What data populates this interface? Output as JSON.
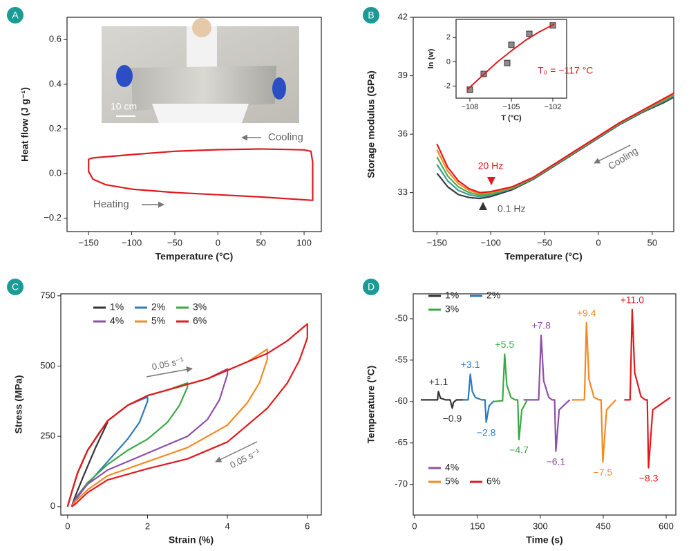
{
  "chart_data": [
    {
      "type": "line",
      "panel": "A",
      "x_label": "Temperature (°C)",
      "y_label": "Heat flow (J g⁻¹)",
      "xlim": [
        -175,
        120
      ],
      "ylim": [
        -0.26,
        0.7
      ],
      "xticks": [
        {
          "value": -150,
          "label": "−150"
        },
        {
          "value": -100,
          "label": "−100"
        },
        {
          "value": -50,
          "label": "−50"
        },
        0,
        50,
        100
      ],
      "yticks": [
        {
          "value": -0.2,
          "label": "−0.2"
        },
        {
          "value": 0,
          "label": "0.0"
        },
        0.2,
        0.4,
        0.6
      ],
      "series": [
        {
          "color": "#e0191e",
          "x": [
            -150,
            -145,
            -100,
            -50,
            0,
            50,
            80,
            100,
            108,
            110,
            110,
            50,
            0,
            -50,
            -100,
            -130,
            -145,
            -150,
            -150
          ],
          "values": [
            0.065,
            0.07,
            0.085,
            0.1,
            0.107,
            0.11,
            0.108,
            0.106,
            0.1,
            0.05,
            -0.12,
            -0.105,
            -0.095,
            -0.085,
            -0.07,
            -0.05,
            -0.025,
            0.01,
            0.065
          ]
        }
      ],
      "annotations": [
        "Cooling",
        "Heating",
        "10 cm"
      ]
    },
    {
      "type": "line",
      "panel": "B",
      "x_label": "Temperature (°C)",
      "y_label": "Storage modulus (GPa)",
      "xlim": [
        -172,
        70
      ],
      "ylim": [
        31,
        42
      ],
      "xticks": [
        {
          "value": -150,
          "label": "−150"
        },
        {
          "value": -100,
          "label": "−100"
        },
        {
          "value": -50,
          "label": "−50"
        },
        0,
        50
      ],
      "yticks": [
        33,
        36,
        39,
        42
      ],
      "series": [
        {
          "color": "#3a3a3a",
          "x": [
            -150,
            -140,
            -130,
            -120,
            -110,
            -100,
            -80,
            -60,
            -40,
            -20,
            0,
            20,
            40,
            60,
            70
          ],
          "values": [
            34.0,
            33.3,
            32.9,
            32.75,
            32.7,
            32.8,
            33.15,
            33.7,
            34.4,
            35.1,
            35.8,
            36.5,
            37.1,
            37.6,
            37.9
          ]
        },
        {
          "color": "#3c9a9a",
          "x": [
            -150,
            -140,
            -130,
            -120,
            -110,
            -100,
            -80,
            -60,
            -40,
            -20,
            0,
            20,
            40,
            60,
            70
          ],
          "values": [
            34.45,
            33.6,
            33.11,
            32.89,
            32.79,
            32.88,
            33.2,
            33.73,
            34.43,
            35.13,
            35.83,
            36.53,
            37.13,
            37.66,
            37.96
          ]
        },
        {
          "color": "#4bab4f",
          "x": [
            -150,
            -140,
            -130,
            -120,
            -110,
            -100,
            -80,
            -60,
            -40,
            -20,
            0,
            20,
            40,
            60,
            70
          ],
          "values": [
            34.83,
            33.85,
            33.29,
            33.0,
            32.87,
            32.94,
            33.23,
            33.76,
            34.46,
            35.16,
            35.86,
            36.56,
            37.16,
            37.71,
            38.01
          ]
        },
        {
          "color": "#f5891f",
          "x": [
            -150,
            -140,
            -130,
            -120,
            -110,
            -100,
            -80,
            -60,
            -40,
            -20,
            0,
            20,
            40,
            60,
            70
          ],
          "values": [
            35.2,
            34.1,
            33.46,
            33.11,
            32.94,
            33.0,
            33.27,
            33.78,
            34.48,
            35.18,
            35.88,
            36.58,
            37.18,
            37.76,
            38.06
          ]
        },
        {
          "color": "#e0191e",
          "x": [
            -150,
            -140,
            -130,
            -120,
            -110,
            -100,
            -80,
            -60,
            -40,
            -20,
            0,
            20,
            40,
            60,
            70
          ],
          "values": [
            35.5,
            34.3,
            33.6,
            33.2,
            33.0,
            33.05,
            33.3,
            33.8,
            34.5,
            35.2,
            35.9,
            36.6,
            37.2,
            37.8,
            38.1
          ]
        }
      ],
      "annotations": [
        "20 Hz",
        "0.1 Hz",
        "Cooling"
      ]
    },
    {
      "type": "scatter",
      "x_label": "T (°C)",
      "y_label": "ln (w)",
      "xlim": [
        -109,
        -101
      ],
      "ylim": [
        -3,
        3.5
      ],
      "xticks": [
        {
          "value": -108,
          "label": "−108"
        },
        {
          "value": -105,
          "label": "−105"
        },
        {
          "value": -102,
          "label": "−102"
        }
      ],
      "yticks": [
        -2,
        0,
        2
      ],
      "series": [
        {
          "mode": "markers",
          "color": "#8c8c8c",
          "x": [
            -108,
            -107,
            -105.3,
            -105,
            -103.7,
            -102
          ],
          "values": [
            -2.3,
            -1.0,
            -0.1,
            1.4,
            2.3,
            3.0
          ]
        },
        {
          "mode": "line",
          "color": "#e0191e",
          "x": [
            -108.2,
            -107,
            -106,
            -105,
            -104,
            -103,
            -101.9
          ],
          "values": [
            -2.3,
            -1.05,
            0,
            0.9,
            1.75,
            2.45,
            3.1
          ]
        }
      ],
      "annotations": [
        "T₀ = −117 °C"
      ]
    },
    {
      "type": "line",
      "panel": "C",
      "x_label": "Strain (%)",
      "y_label": "Stress (MPa)",
      "xlim": [
        -0.17,
        6.35
      ],
      "ylim": [
        -30,
        757
      ],
      "xticks": [
        0,
        2,
        4,
        6
      ],
      "yticks": [
        0,
        250,
        500,
        750
      ],
      "legend": true,
      "series": [
        {
          "name": "1%",
          "color": "#333333",
          "x": [
            0,
            0.1,
            0.25,
            0.5,
            0.8,
            1,
            0.7,
            0.4,
            0.2,
            0.1
          ],
          "values": [
            0,
            50,
            120,
            200,
            265,
            300,
            210,
            110,
            40,
            0
          ]
        },
        {
          "name": "2%",
          "color": "#2f7ab8",
          "x": [
            0,
            0.1,
            0.25,
            0.5,
            1,
            1.5,
            2,
            2,
            1.8,
            1.5,
            1,
            0.5,
            0.2,
            0.1
          ],
          "values": [
            0,
            50,
            120,
            200,
            305,
            360,
            390,
            375,
            300,
            240,
            160,
            80,
            25,
            0
          ]
        },
        {
          "name": "3%",
          "color": "#3aa845",
          "x": [
            0,
            0.1,
            0.25,
            0.5,
            1,
            1.5,
            2,
            2.5,
            3,
            3,
            2.8,
            2.5,
            2,
            1.5,
            1,
            0.5,
            0.2,
            0.1
          ],
          "values": [
            0,
            50,
            120,
            200,
            305,
            360,
            395,
            415,
            440,
            425,
            360,
            300,
            240,
            200,
            150,
            85,
            30,
            0
          ]
        },
        {
          "name": "4%",
          "color": "#8e4ea8",
          "x": [
            0,
            0.1,
            0.25,
            0.5,
            1,
            1.5,
            2,
            2.5,
            3,
            3.5,
            4,
            4,
            3.8,
            3.5,
            3,
            2,
            1,
            0.5,
            0.2,
            0.1
          ],
          "values": [
            0,
            50,
            120,
            200,
            305,
            360,
            395,
            415,
            435,
            455,
            490,
            470,
            380,
            310,
            250,
            190,
            130,
            80,
            30,
            0
          ]
        },
        {
          "name": "5%",
          "color": "#f5891f",
          "x": [
            0,
            0.1,
            0.25,
            0.5,
            1,
            1.5,
            2,
            2.5,
            3,
            3.5,
            4,
            4.5,
            5,
            5,
            4.8,
            4.5,
            4,
            3,
            2,
            1,
            0.5,
            0.2,
            0.1
          ],
          "values": [
            0,
            50,
            120,
            200,
            305,
            360,
            395,
            415,
            435,
            455,
            485,
            515,
            560,
            525,
            440,
            370,
            290,
            210,
            160,
            110,
            60,
            20,
            0
          ]
        },
        {
          "name": "6%",
          "color": "#e0191e",
          "x": [
            0,
            0.1,
            0.25,
            0.5,
            1,
            1.5,
            2,
            2.5,
            3,
            3.5,
            4,
            4.5,
            5,
            5.5,
            6,
            6,
            5.8,
            5.5,
            5,
            4,
            3,
            2,
            1,
            0.5,
            0.2,
            0.1
          ],
          "values": [
            0,
            50,
            120,
            200,
            305,
            360,
            395,
            415,
            435,
            455,
            485,
            515,
            545,
            590,
            650,
            600,
            520,
            440,
            350,
            230,
            170,
            135,
            95,
            50,
            10,
            0
          ]
        }
      ],
      "annotations": [
        "0.05 s⁻¹",
        "0.05 s⁻¹"
      ]
    },
    {
      "type": "line",
      "panel": "D",
      "x_label": "Time (s)",
      "y_label": "Temperature (°C)",
      "xlim": [
        -3,
        623
      ],
      "ylim": [
        -73.7,
        -47
      ],
      "xticks": [
        0,
        150,
        300,
        450,
        600
      ],
      "yticks": [
        -70,
        -65,
        -60,
        -55,
        -50
      ],
      "legend": true,
      "series": [
        {
          "name": "1%",
          "color": "#333333",
          "peak_label": "+1.1",
          "trough_label": "−0.9",
          "x": [
            15,
            40,
            55,
            57,
            62,
            75,
            85,
            90,
            93,
            100,
            120
          ],
          "values": [
            -59.8,
            -59.8,
            -59.8,
            -58.8,
            -59.6,
            -59.8,
            -59.8,
            -60.8,
            -60.1,
            -59.8,
            -59.8
          ]
        },
        {
          "name": "2%",
          "color": "#2f7ab8",
          "peak_label": "+3.1",
          "trough_label": "−2.8",
          "x": [
            115,
            128,
            133,
            138,
            145,
            160,
            168,
            171,
            178,
            190
          ],
          "values": [
            -59.8,
            -59.8,
            -56.7,
            -58.8,
            -59.5,
            -59.8,
            -59.8,
            -62.5,
            -60.5,
            -59.9
          ]
        },
        {
          "name": "3%",
          "color": "#3aa845",
          "peak_label": "+5.5",
          "trough_label": "−4.7",
          "x": [
            190,
            210,
            215,
            220,
            230,
            240,
            246,
            249,
            256,
            268
          ],
          "values": [
            -60,
            -59.9,
            -54.3,
            -58.0,
            -59.5,
            -59.8,
            -59.8,
            -64.6,
            -61,
            -59.9
          ]
        },
        {
          "name": "4%",
          "color": "#8e4ea8",
          "peak_label": "+7.8",
          "trough_label": "−6.1",
          "x": [
            260,
            296,
            302,
            308,
            320,
            328,
            334,
            337,
            345,
            370
          ],
          "values": [
            -59.8,
            -59.8,
            -52.0,
            -57.5,
            -59.5,
            -59.8,
            -59.8,
            -66.0,
            -61,
            -59.8
          ]
        },
        {
          "name": "5%",
          "color": "#f5891f",
          "peak_label": "+9.4",
          "trough_label": "−7.5",
          "x": [
            375,
            405,
            410,
            416,
            428,
            440,
            445,
            449,
            458,
            480
          ],
          "values": [
            -59.8,
            -59.8,
            -50.5,
            -57.3,
            -59.5,
            -59.8,
            -59.8,
            -67.3,
            -61,
            -59.8
          ]
        },
        {
          "name": "6%",
          "color": "#e0191e",
          "peak_label": "+11.0",
          "trough_label": "−8.3",
          "x": [
            500,
            514,
            519,
            525,
            540,
            550,
            555,
            558,
            568,
            610
          ],
          "values": [
            -59.8,
            -59.8,
            -48.9,
            -56.5,
            -59.4,
            -59.8,
            -59.8,
            -68.0,
            -61,
            -59.5
          ]
        }
      ]
    }
  ]
}
